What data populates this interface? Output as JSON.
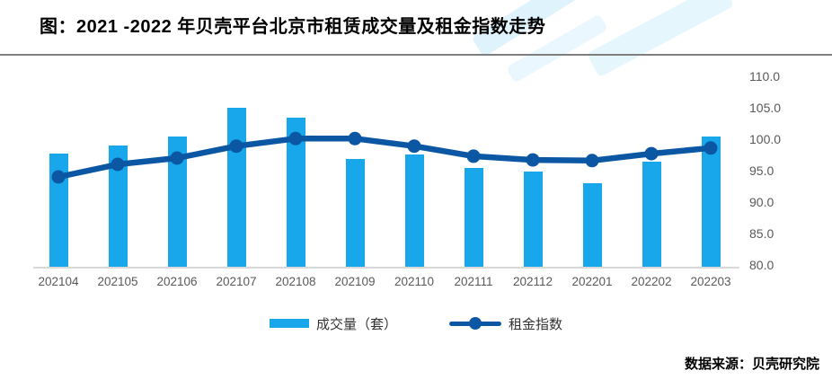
{
  "title": "图：2021 -2022 年贝壳平台北京市租赁成交量及租金指数走势",
  "footer": {
    "source_label": "数据来源：贝壳研究院"
  },
  "legend": {
    "items": [
      {
        "label": "成交量（套）",
        "type": "bar"
      },
      {
        "label": "租金指数",
        "type": "line"
      }
    ]
  },
  "colors": {
    "bar": "#17a7ea",
    "line": "#0b57a4",
    "axis_text": "#595959",
    "baseline": "#d9d9d9",
    "divider": "#7f7f7f"
  },
  "chart_data": {
    "type": "bar+line combo",
    "categories": [
      "202104",
      "202105",
      "202106",
      "202107",
      "202108",
      "202109",
      "202110",
      "202111",
      "202112",
      "202201",
      "202202",
      "202203"
    ],
    "series": [
      {
        "name": "成交量（套）",
        "type": "bar",
        "axis": "left (unlabeled/hidden)",
        "values_right_axis_equiv": [
          97.7,
          99.0,
          100.4,
          105.0,
          103.5,
          96.9,
          97.6,
          95.4,
          94.9,
          93.0,
          96.4,
          100.4
        ]
      },
      {
        "name": "租金指数",
        "type": "line",
        "axis": "right",
        "values": [
          94.0,
          96.0,
          97.0,
          98.9,
          100.1,
          100.1,
          98.9,
          97.3,
          96.7,
          96.6,
          97.7,
          98.6
        ]
      }
    ],
    "right_axis": {
      "ticks": [
        "110.0",
        "105.0",
        "100.0",
        "95.0",
        "90.0",
        "85.0",
        "80.0"
      ],
      "min": 80,
      "max": 110
    },
    "grid": false,
    "legend_position": "bottom",
    "xlabel": "",
    "ylabel": ""
  }
}
